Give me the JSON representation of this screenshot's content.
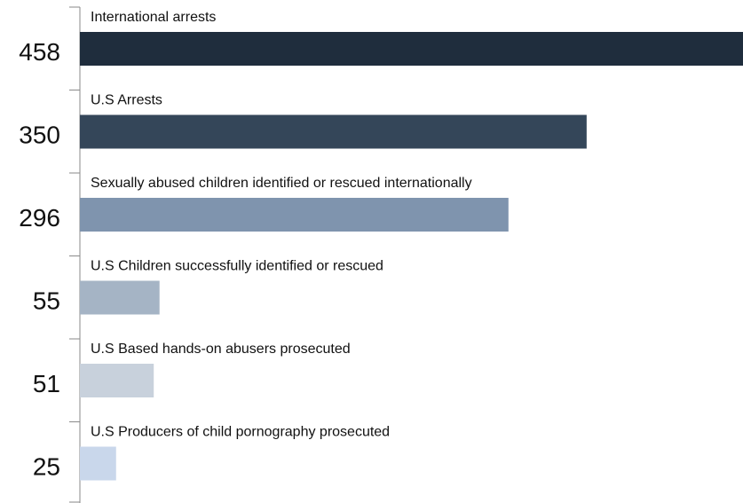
{
  "chart_data": {
    "type": "bar",
    "orientation": "horizontal",
    "categories": [
      "International arrests",
      "U.S Arrests",
      "Sexually abused children identified or rescued internationally",
      "U.S Children successfully identified or rescued",
      "U.S Based hands-on abusers prosecuted",
      "U.S Producers of child pornography prosecuted"
    ],
    "values": [
      458,
      350,
      296,
      55,
      51,
      25
    ],
    "value_labels": [
      "458",
      "350",
      "296",
      "55",
      "51",
      "25"
    ],
    "colors": [
      "#1f2d3d",
      "#344659",
      "#7f94ae",
      "#a5b4c5",
      "#c8d1dc",
      "#c9d7eb"
    ],
    "xlim": [
      0,
      458
    ],
    "grid": false,
    "legend": "none"
  }
}
